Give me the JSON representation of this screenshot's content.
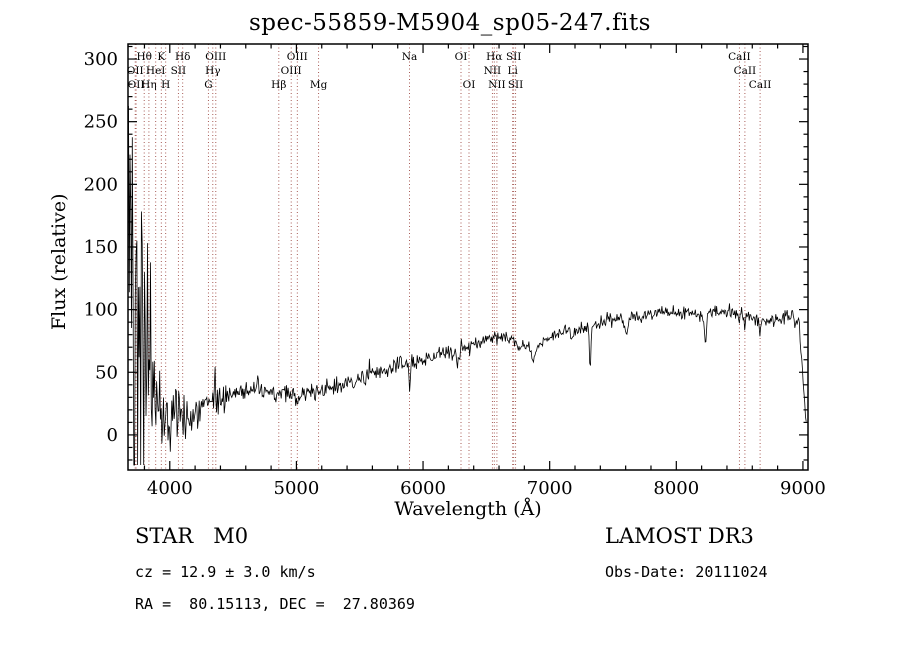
{
  "title": "spec-55859-M5904_sp05-247.fits",
  "annotations": {
    "class_label": "STAR   M0",
    "cz": "cz = 12.9 ± 3.0 km/s",
    "radec": "RA =  80.15113, DEC =  27.80369",
    "survey": "LAMOST DR3",
    "obs_date": "Obs-Date: 20111024"
  },
  "chart_data": {
    "type": "line",
    "title": "spec-55859-M5904_sp05-247.fits",
    "xlabel": "Wavelength (Å)",
    "ylabel": "Flux (relative)",
    "xlim": [
      3670,
      9040
    ],
    "ylim": [
      -28,
      312
    ],
    "x_ticks": [
      4000,
      5000,
      6000,
      7000,
      8000,
      9000
    ],
    "y_ticks": [
      0,
      50,
      100,
      150,
      200,
      250,
      300
    ],
    "x_minor_step": 200,
    "y_minor_step": 10,
    "grid": false,
    "legend": "none",
    "line_color": "#000000",
    "marker_line_color": "#9e4a44",
    "series_name": "flux (relative), M0 star spectrum",
    "continuum_anchors": [
      [
        3690,
        150
      ],
      [
        3710,
        160
      ],
      [
        3730,
        150
      ],
      [
        3760,
        110
      ],
      [
        3790,
        70
      ],
      [
        3820,
        50
      ],
      [
        3860,
        38
      ],
      [
        3900,
        28
      ],
      [
        3950,
        20
      ],
      [
        4000,
        15
      ],
      [
        4050,
        12
      ],
      [
        4100,
        13
      ],
      [
        4150,
        15
      ],
      [
        4250,
        20
      ],
      [
        4350,
        26
      ],
      [
        4450,
        31
      ],
      [
        4550,
        35
      ],
      [
        4650,
        36
      ],
      [
        4750,
        34
      ],
      [
        4850,
        33
      ],
      [
        4950,
        32
      ],
      [
        5000,
        30
      ],
      [
        5050,
        32
      ],
      [
        5150,
        35
      ],
      [
        5250,
        37
      ],
      [
        5350,
        39
      ],
      [
        5450,
        42
      ],
      [
        5550,
        46
      ],
      [
        5650,
        50
      ],
      [
        5750,
        53
      ],
      [
        5850,
        57
      ],
      [
        5950,
        59
      ],
      [
        6050,
        62
      ],
      [
        6150,
        65
      ],
      [
        6250,
        67
      ],
      [
        6350,
        69
      ],
      [
        6450,
        74
      ],
      [
        6550,
        79
      ],
      [
        6650,
        78
      ],
      [
        6750,
        72
      ],
      [
        6850,
        70
      ],
      [
        6950,
        74
      ],
      [
        7050,
        80
      ],
      [
        7150,
        84
      ],
      [
        7250,
        86
      ],
      [
        7350,
        88
      ],
      [
        7450,
        92
      ],
      [
        7550,
        93
      ],
      [
        7650,
        94
      ],
      [
        7750,
        96
      ],
      [
        7850,
        97
      ],
      [
        7950,
        97
      ],
      [
        8050,
        98
      ],
      [
        8150,
        96
      ],
      [
        8250,
        97
      ],
      [
        8350,
        99
      ],
      [
        8450,
        98
      ],
      [
        8550,
        95
      ],
      [
        8650,
        92
      ],
      [
        8750,
        91
      ],
      [
        8850,
        94
      ],
      [
        8930,
        97
      ],
      [
        8970,
        90
      ],
      [
        9000,
        45
      ],
      [
        9020,
        12
      ]
    ],
    "noise_amplitude_profile": [
      [
        3690,
        140
      ],
      [
        3720,
        130
      ],
      [
        3750,
        110
      ],
      [
        3780,
        80
      ],
      [
        3820,
        55
      ],
      [
        3860,
        40
      ],
      [
        3900,
        30
      ],
      [
        3950,
        22
      ],
      [
        4000,
        14
      ],
      [
        4100,
        9
      ],
      [
        4200,
        6
      ],
      [
        4400,
        5
      ],
      [
        4800,
        4
      ],
      [
        5400,
        3.5
      ],
      [
        6000,
        3
      ],
      [
        7000,
        2.5
      ],
      [
        8000,
        2.5
      ],
      [
        9000,
        3
      ]
    ],
    "absorption_features": [
      {
        "center": 5893,
        "depth": 20,
        "sigma": 7
      },
      {
        "center": 6276,
        "depth": 8,
        "sigma": 10
      },
      {
        "center": 6869,
        "depth": 13,
        "sigma": 12
      },
      {
        "center": 7186,
        "depth": 8,
        "sigma": 12
      },
      {
        "center": 7320,
        "depth": 38,
        "sigma": 6
      },
      {
        "center": 7605,
        "depth": 12,
        "sigma": 15
      },
      {
        "center": 8230,
        "depth": 24,
        "sigma": 7
      },
      {
        "center": 8498,
        "depth": 8,
        "sigma": 5
      },
      {
        "center": 8542,
        "depth": 9,
        "sigma": 5
      },
      {
        "center": 8662,
        "depth": 9,
        "sigma": 5
      },
      {
        "center": 8940,
        "depth": 10,
        "sigma": 10
      }
    ],
    "emission_features": [
      {
        "center": 4047,
        "height": 15,
        "sigma": 4
      },
      {
        "center": 4358,
        "height": 25,
        "sigma": 4
      },
      {
        "center": 5577,
        "height": 10,
        "sigma": 3
      },
      {
        "center": 6302,
        "height": 8,
        "sigma": 3
      }
    ],
    "noise_seed": 42,
    "sample_step_angstrom": 6,
    "spectral_lines": [
      {
        "wavelength": 3727,
        "label": "OII",
        "row": 2
      },
      {
        "wavelength": 3734,
        "label": "OII",
        "row": 3
      },
      {
        "wavelength": 3798,
        "label": "Hθ",
        "row": 1
      },
      {
        "wavelength": 3835,
        "label": "Hη",
        "row": 3
      },
      {
        "wavelength": 3889,
        "label": "HeI",
        "row": 2
      },
      {
        "wavelength": 3933,
        "label": "K",
        "row": 1
      },
      {
        "wavelength": 3968,
        "label": "H",
        "row": 3
      },
      {
        "wavelength": 4068,
        "label": "SII",
        "row": 2
      },
      {
        "wavelength": 4102,
        "label": "Hδ",
        "row": 1
      },
      {
        "wavelength": 4305,
        "label": "G",
        "row": 3
      },
      {
        "wavelength": 4340,
        "label": "Hγ",
        "row": 2
      },
      {
        "wavelength": 4363,
        "label": "OIII",
        "row": 1
      },
      {
        "wavelength": 4861,
        "label": "Hβ",
        "row": 3
      },
      {
        "wavelength": 4959,
        "label": "OIII",
        "row": 2
      },
      {
        "wavelength": 5007,
        "label": "OIII",
        "row": 1
      },
      {
        "wavelength": 5175,
        "label": "Mg",
        "row": 3
      },
      {
        "wavelength": 5893,
        "label": "Na",
        "row": 1
      },
      {
        "wavelength": 6300,
        "label": "OI",
        "row": 1
      },
      {
        "wavelength": 6363,
        "label": "OI",
        "row": 3
      },
      {
        "wavelength": 6548,
        "label": "NII",
        "row": 2
      },
      {
        "wavelength": 6563,
        "label": "Hα",
        "row": 1
      },
      {
        "wavelength": 6583,
        "label": "NII",
        "row": 3
      },
      {
        "wavelength": 6708,
        "label": "Li",
        "row": 2
      },
      {
        "wavelength": 6716,
        "label": "SII",
        "row": 1
      },
      {
        "wavelength": 6731,
        "label": "SII",
        "row": 3
      },
      {
        "wavelength": 8498,
        "label": "CaII",
        "row": 1
      },
      {
        "wavelength": 8542,
        "label": "CaII",
        "row": 2
      },
      {
        "wavelength": 8662,
        "label": "CaII",
        "row": 3
      }
    ]
  }
}
